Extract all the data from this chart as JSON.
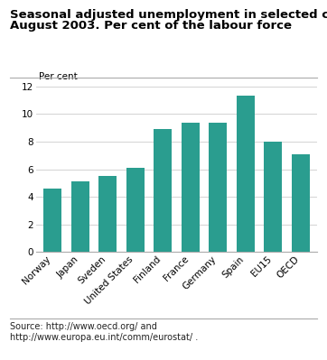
{
  "title_line1": "Seasonal adjusted unemployment in selected countries,",
  "title_line2": "August 2003. Per cent of the labour force",
  "ylabel": "Per cent",
  "categories": [
    "Norway",
    "Japan",
    "Sveden",
    "United States",
    "Finland",
    "France",
    "Germany",
    "Spain",
    "EU15",
    "OECD"
  ],
  "values": [
    4.6,
    5.1,
    5.5,
    6.1,
    8.9,
    9.4,
    9.4,
    11.3,
    8.0,
    7.1
  ],
  "bar_color": "#2a9d8f",
  "ylim": [
    0,
    12
  ],
  "yticks": [
    0,
    2,
    4,
    6,
    8,
    10,
    12
  ],
  "source_text": "Source: http://www.oecd.org/ and\nhttp://www.europa.eu.int/comm/eurostat/ .",
  "background_color": "#ffffff",
  "grid_color": "#cccccc",
  "title_fontsize": 9.5,
  "axis_label_fontsize": 7.5,
  "tick_fontsize": 7.5,
  "source_fontsize": 7.0
}
